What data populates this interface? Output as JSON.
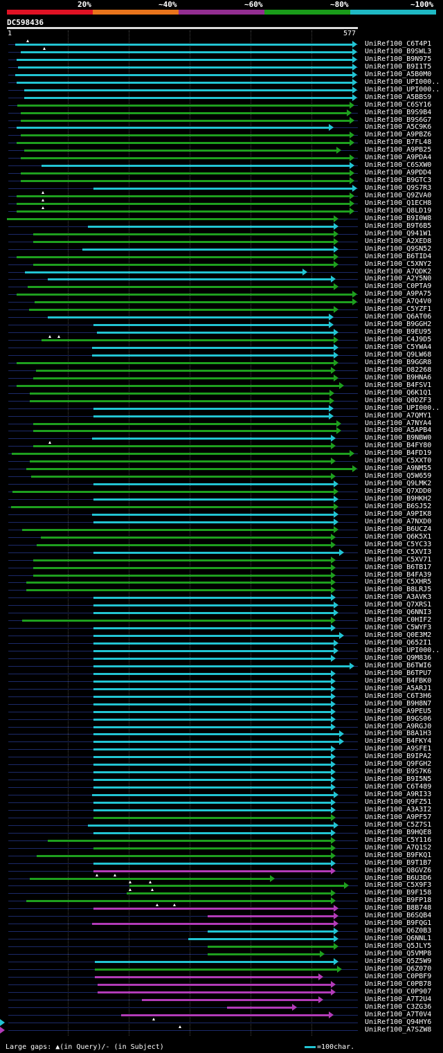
{
  "legend": {
    "labels": [
      "20%",
      "~40%",
      "~60%",
      "~80%",
      "~100%"
    ],
    "colors": [
      "#e01224",
      "#e8741c",
      "#932e91",
      "#1a9c1a",
      "#1fb9c4"
    ]
  },
  "query": {
    "id": "DC598436",
    "start": "1",
    "end": "577"
  },
  "footer": {
    "gaps_text": "Large gaps: ▲(in Query)/- (in Subject)",
    "scale_text": "=100char."
  },
  "hits": [
    {
      "name": "UniRef100_C6T4P1",
      "color": "cyan"
    },
    {
      "name": "UniRef100_B9SWL3",
      "color": "cyan"
    },
    {
      "name": "UniRef100_B9N975",
      "color": "cyan"
    },
    {
      "name": "UniRef100_B9I1T5",
      "color": "cyan"
    },
    {
      "name": "UniRef100_A5B0M0",
      "color": "cyan"
    },
    {
      "name": "UniRef100_UPI000..",
      "color": "cyan"
    },
    {
      "name": "UniRef100_UPI000..",
      "color": "cyan"
    },
    {
      "name": "UniRef100_A5BBS9",
      "color": "cyan"
    },
    {
      "name": "UniRef100_C6SY16",
      "color": "green"
    },
    {
      "name": "UniRef100_B9S9B4",
      "color": "green"
    },
    {
      "name": "UniRef100_B9S6G7",
      "color": "green"
    },
    {
      "name": "UniRef100_A5C9K6",
      "color": "cyan"
    },
    {
      "name": "UniRef100_A9PBZ6",
      "color": "green"
    },
    {
      "name": "UniRef100_B7FL48",
      "color": "green"
    },
    {
      "name": "UniRef100_A9PB25",
      "color": "green"
    },
    {
      "name": "UniRef100_A9PDA4",
      "color": "green"
    },
    {
      "name": "UniRef100_C6SXW0",
      "color": "cyan"
    },
    {
      "name": "UniRef100_A9PDD4",
      "color": "green"
    },
    {
      "name": "UniRef100_B9GTC3",
      "color": "green"
    },
    {
      "name": "UniRef100_Q9S7R3",
      "color": "cyan"
    },
    {
      "name": "UniRef100_Q9ZVA0",
      "color": "green"
    },
    {
      "name": "UniRef100_Q1ECH8",
      "color": "green"
    },
    {
      "name": "UniRef100_Q8LD19",
      "color": "green"
    },
    {
      "name": "UniRef100_B9I0W8",
      "color": "green"
    },
    {
      "name": "UniRef100_B9T6B5",
      "color": "cyan"
    },
    {
      "name": "UniRef100_Q941W1",
      "color": "green"
    },
    {
      "name": "UniRef100_A2XED8",
      "color": "green"
    },
    {
      "name": "UniRef100_Q9SN52",
      "color": "cyan"
    },
    {
      "name": "UniRef100_B6TID4",
      "color": "green"
    },
    {
      "name": "UniRef100_C5XNY2",
      "color": "green"
    },
    {
      "name": "UniRef100_A7QDK2",
      "color": "cyan"
    },
    {
      "name": "UniRef100_A2Y5N0",
      "color": "cyan"
    },
    {
      "name": "UniRef100_C0PTA9",
      "color": "green"
    },
    {
      "name": "UniRef100_A9PA75",
      "color": "green"
    },
    {
      "name": "UniRef100_A7Q4V0",
      "color": "green"
    },
    {
      "name": "UniRef100_C5YZF1",
      "color": "green"
    },
    {
      "name": "UniRef100_Q6AT06",
      "color": "cyan"
    },
    {
      "name": "UniRef100_B9GGH2",
      "color": "cyan"
    },
    {
      "name": "UniRef100_B9EU95",
      "color": "cyan"
    },
    {
      "name": "UniRef100_C4J9D5",
      "color": "green"
    },
    {
      "name": "UniRef100_C5YWA4",
      "color": "cyan"
    },
    {
      "name": "UniRef100_Q9LW68",
      "color": "cyan"
    },
    {
      "name": "UniRef100_B9GGR8",
      "color": "green"
    },
    {
      "name": "UniRef100_O82268",
      "color": "green"
    },
    {
      "name": "UniRef100_B9HNA6",
      "color": "green"
    },
    {
      "name": "UniRef100_B4FSV1",
      "color": "green"
    },
    {
      "name": "UniRef100_Q6K1Q1",
      "color": "green"
    },
    {
      "name": "UniRef100_Q0DZF3",
      "color": "green"
    },
    {
      "name": "UniRef100_UPI000..",
      "color": "cyan"
    },
    {
      "name": "UniRef100_A7QMY1",
      "color": "cyan"
    },
    {
      "name": "UniRef100_A7NYA4",
      "color": "green"
    },
    {
      "name": "UniRef100_A5APB4",
      "color": "green"
    },
    {
      "name": "UniRef100_B9NBW0",
      "color": "cyan"
    },
    {
      "name": "UniRef100_B4FY80",
      "color": "green"
    },
    {
      "name": "UniRef100_B4FD19",
      "color": "green"
    },
    {
      "name": "UniRef100_C5XXT0",
      "color": "green"
    },
    {
      "name": "UniRef100_A9NM55",
      "color": "green"
    },
    {
      "name": "UniRef100_Q5W659",
      "color": "green"
    },
    {
      "name": "UniRef100_Q9LMK2",
      "color": "cyan"
    },
    {
      "name": "UniRef100_Q7XDD0",
      "color": "green"
    },
    {
      "name": "UniRef100_B9HKH2",
      "color": "cyan"
    },
    {
      "name": "UniRef100_B6SJ52",
      "color": "green"
    },
    {
      "name": "UniRef100_A9PIK8",
      "color": "cyan"
    },
    {
      "name": "UniRef100_A7NXD0",
      "color": "cyan"
    },
    {
      "name": "UniRef100_B6UCZ4",
      "color": "green"
    },
    {
      "name": "UniRef100_Q6K5X1",
      "color": "green"
    },
    {
      "name": "UniRef100_C5YC33",
      "color": "green"
    },
    {
      "name": "UniRef100_C5XVI3",
      "color": "cyan"
    },
    {
      "name": "UniRef100_C5XV71",
      "color": "green"
    },
    {
      "name": "UniRef100_B6TB17",
      "color": "green"
    },
    {
      "name": "UniRef100_B4FA39",
      "color": "green"
    },
    {
      "name": "UniRef100_C5XHR5",
      "color": "green"
    },
    {
      "name": "UniRef100_B8LRJ5",
      "color": "green"
    },
    {
      "name": "UniRef100_A3AVK3",
      "color": "cyan"
    },
    {
      "name": "UniRef100_Q7XRS1",
      "color": "cyan"
    },
    {
      "name": "UniRef100_Q6NNI3",
      "color": "cyan"
    },
    {
      "name": "UniRef100_C0HIF2",
      "color": "green"
    },
    {
      "name": "UniRef100_C5WYF3",
      "color": "cyan"
    },
    {
      "name": "UniRef100_Q0E3M2",
      "color": "cyan"
    },
    {
      "name": "UniRef100_Q652I1",
      "color": "cyan"
    },
    {
      "name": "UniRef100_UPI000..",
      "color": "cyan"
    },
    {
      "name": "UniRef100_Q9M836",
      "color": "cyan"
    },
    {
      "name": "UniRef100_B6TWI6",
      "color": "cyan"
    },
    {
      "name": "UniRef100_B6TPU7",
      "color": "cyan"
    },
    {
      "name": "UniRef100_B4FBK0",
      "color": "cyan"
    },
    {
      "name": "UniRef100_A5ARJ1",
      "color": "cyan"
    },
    {
      "name": "UniRef100_C6T3H6",
      "color": "cyan"
    },
    {
      "name": "UniRef100_B9H8N7",
      "color": "cyan"
    },
    {
      "name": "UniRef100_A9PEU5",
      "color": "cyan"
    },
    {
      "name": "UniRef100_B9GS06",
      "color": "cyan"
    },
    {
      "name": "UniRef100_A9RGJ0",
      "color": "cyan"
    },
    {
      "name": "UniRef100_B8A1H3",
      "color": "cyan"
    },
    {
      "name": "UniRef100_B4FKY4",
      "color": "cyan"
    },
    {
      "name": "UniRef100_A9SFE1",
      "color": "cyan"
    },
    {
      "name": "UniRef100_B9IPA2",
      "color": "cyan"
    },
    {
      "name": "UniRef100_Q9FGH2",
      "color": "cyan"
    },
    {
      "name": "UniRef100_B9S7K6",
      "color": "cyan"
    },
    {
      "name": "UniRef100_B9I5N5",
      "color": "cyan"
    },
    {
      "name": "UniRef100_C6T489",
      "color": "cyan"
    },
    {
      "name": "UniRef100_A9RI33",
      "color": "cyan"
    },
    {
      "name": "UniRef100_Q9FZ51",
      "color": "cyan"
    },
    {
      "name": "UniRef100_A3A3I2",
      "color": "cyan"
    },
    {
      "name": "UniRef100_A9PF57",
      "color": "green"
    },
    {
      "name": "UniRef100_C5Z7S1",
      "color": "cyan"
    },
    {
      "name": "UniRef100_B9HQE8",
      "color": "cyan"
    },
    {
      "name": "UniRef100_C5Y116",
      "color": "green"
    },
    {
      "name": "UniRef100_A7Q1S2",
      "color": "green"
    },
    {
      "name": "UniRef100_B9FKQ1",
      "color": "green"
    },
    {
      "name": "UniRef100_B9T1B7",
      "color": "cyan"
    },
    {
      "name": "UniRef100_Q8GVZ6",
      "color": "magenta"
    },
    {
      "name": "UniRef100_B6U3D6",
      "color": "green"
    },
    {
      "name": "UniRef100_C5X9F3",
      "color": "green"
    },
    {
      "name": "UniRef100_B9F158",
      "color": "green"
    },
    {
      "name": "UniRef100_B9FP18",
      "color": "green"
    },
    {
      "name": "UniRef100_B8B748",
      "color": "magenta"
    },
    {
      "name": "UniRef100_B6SQB4",
      "color": "magenta"
    },
    {
      "name": "UniRef100_B9FQG1",
      "color": "magenta"
    },
    {
      "name": "UniRef100_Q6Z0B3",
      "color": "cyan"
    },
    {
      "name": "UniRef100_Q6NNL1",
      "color": "cyan"
    },
    {
      "name": "UniRef100_Q5JLY5",
      "color": "green"
    },
    {
      "name": "UniRef100_Q5VMP8",
      "color": "green"
    },
    {
      "name": "UniRef100_Q5Z5W9",
      "color": "cyan"
    },
    {
      "name": "UniRef100_Q6Z070",
      "color": "green"
    },
    {
      "name": "UniRef100_C0PBF9",
      "color": "magenta"
    },
    {
      "name": "UniRef100_C0PB78",
      "color": "magenta"
    },
    {
      "name": "UniRef100_C0P907",
      "color": "magenta"
    },
    {
      "name": "UniRef100_A7T2U4",
      "color": "magenta"
    },
    {
      "name": "UniRef100_C3ZG36",
      "color": "magenta"
    },
    {
      "name": "UniRef100_A7T0V4",
      "color": "magenta"
    },
    {
      "name": "UniRef100_Q94HY6",
      "color": "cyan"
    },
    {
      "name": "UniRef100_A7SZW8",
      "color": "magenta"
    }
  ]
}
